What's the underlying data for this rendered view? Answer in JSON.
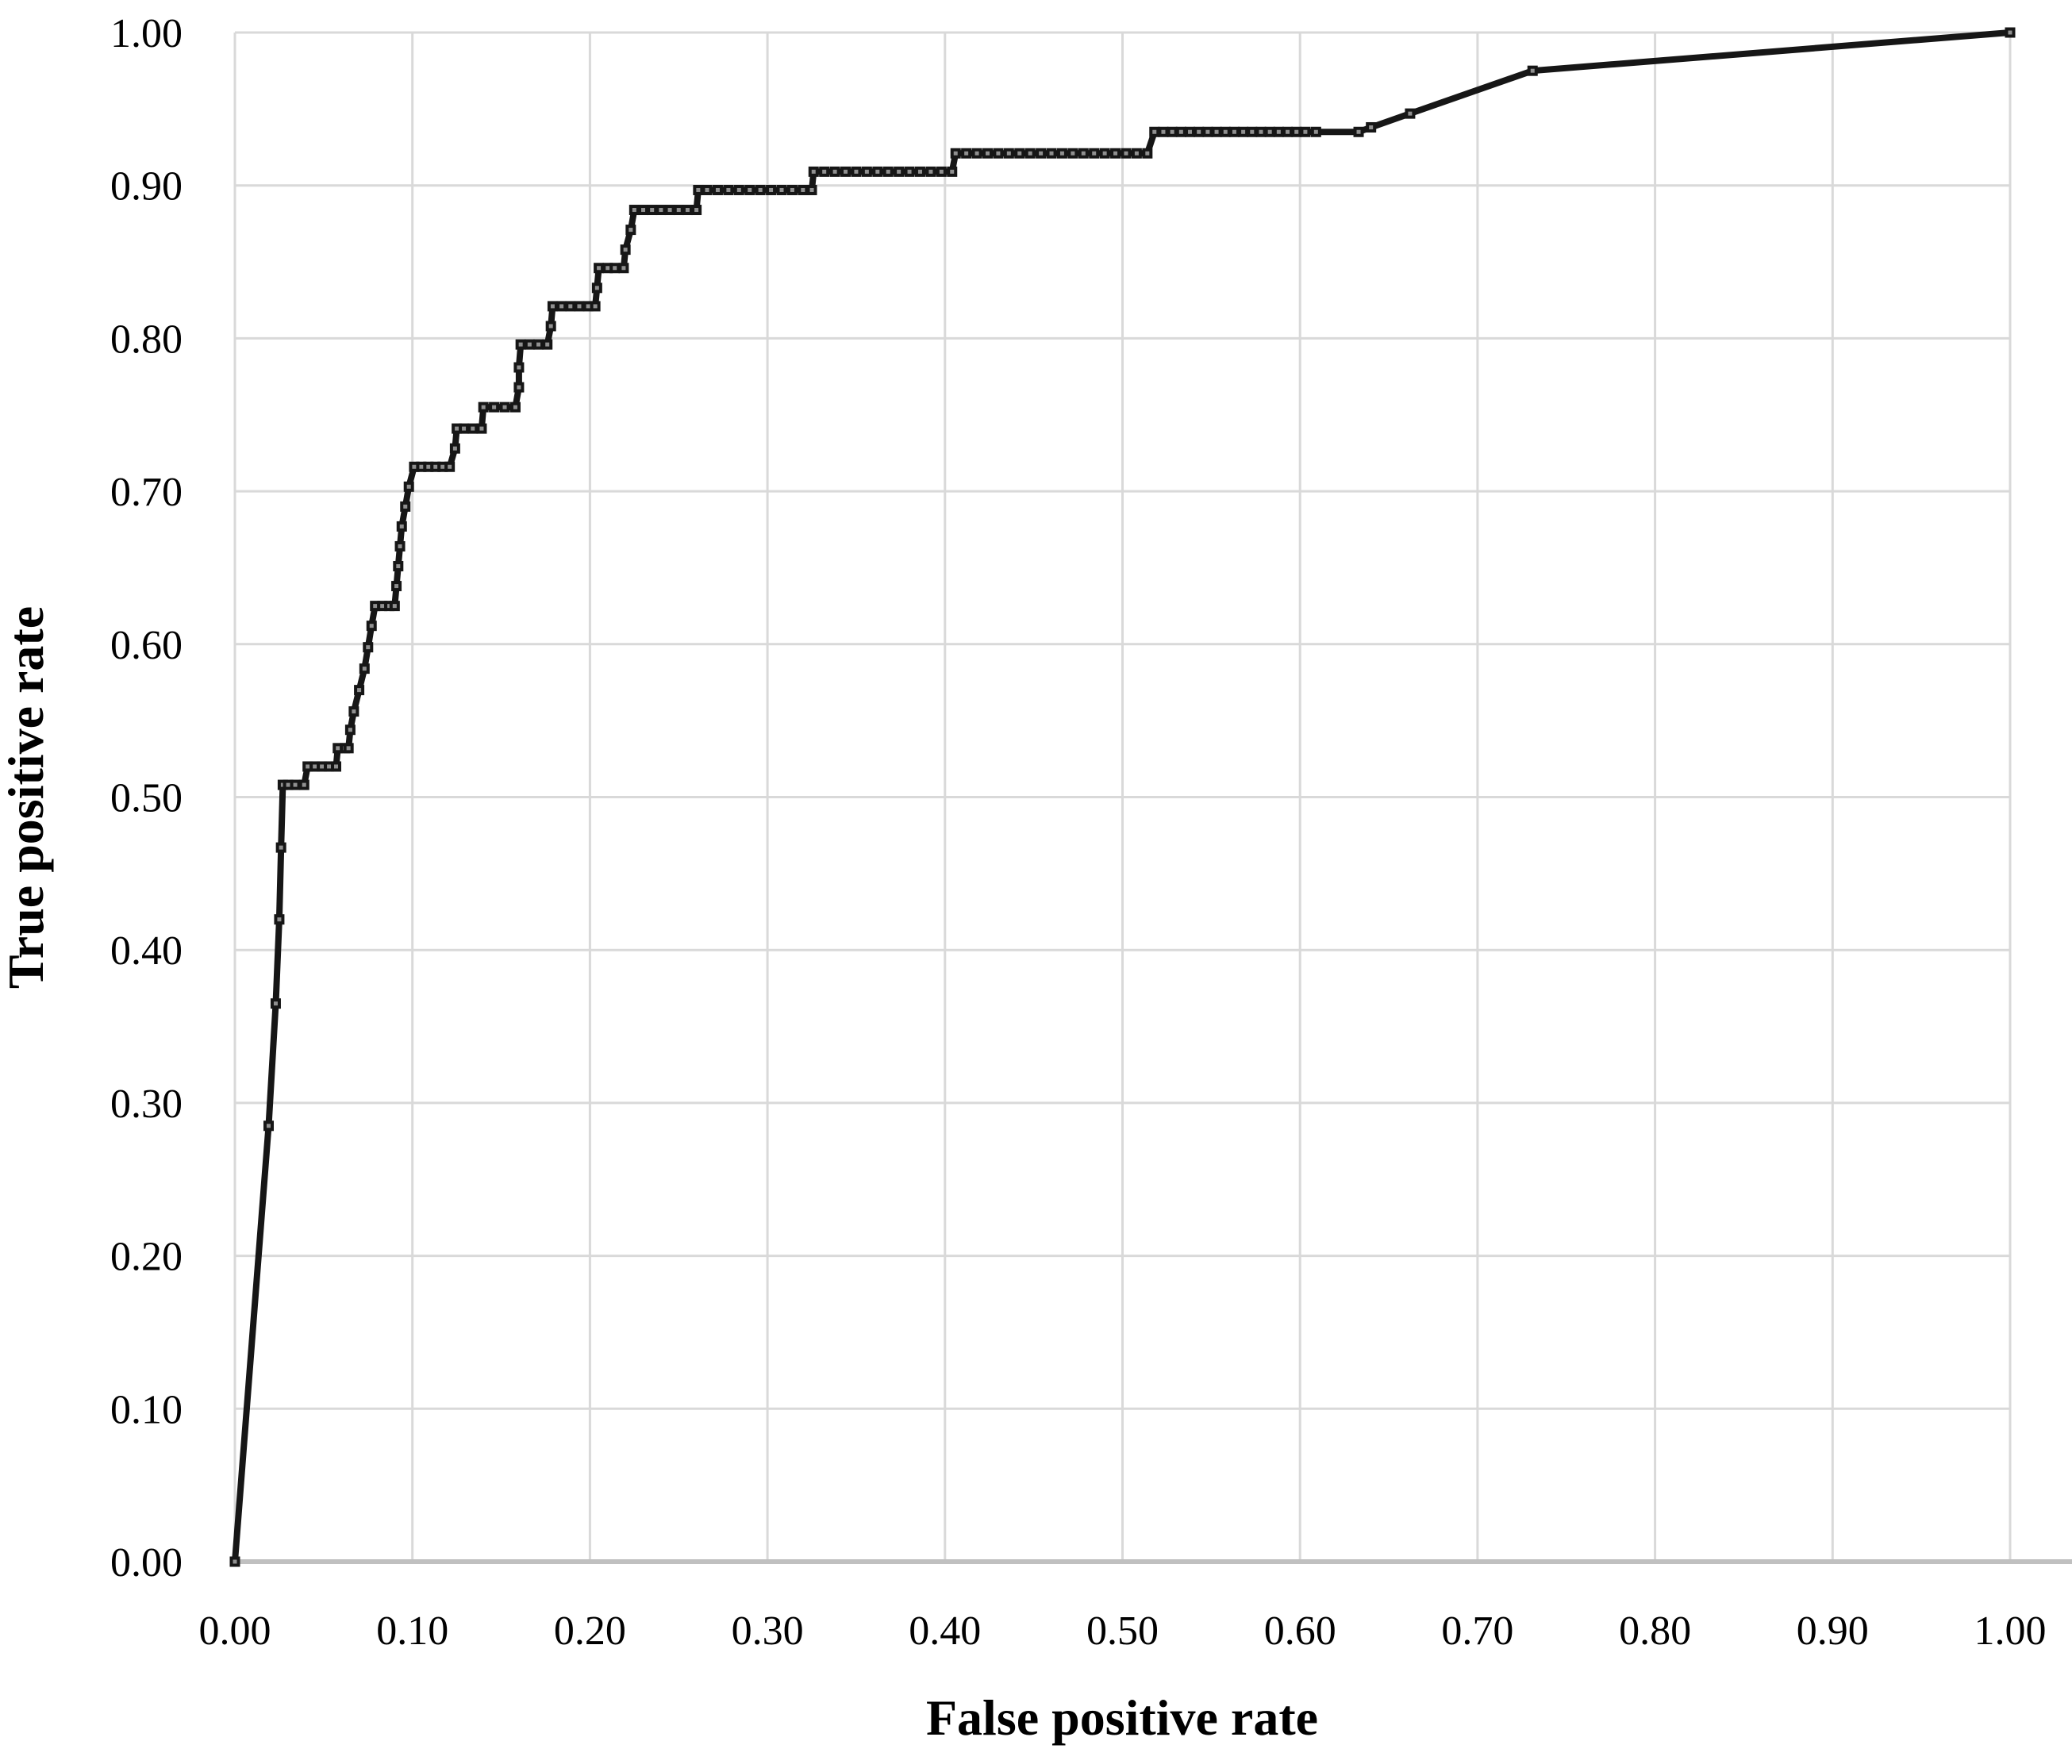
{
  "chart_data": {
    "type": "line",
    "subtype": "roc-step-curve",
    "title": "",
    "xlabel": "False positive rate",
    "ylabel": "True positive rate",
    "xlim": [
      0.0,
      1.0
    ],
    "ylim": [
      0.0,
      1.0
    ],
    "grid": true,
    "legend": false,
    "x_ticks": [
      "0.00",
      "0.10",
      "0.20",
      "0.30",
      "0.40",
      "0.50",
      "0.60",
      "0.70",
      "0.80",
      "0.90",
      "1.00"
    ],
    "y_ticks": [
      "0.00",
      "0.10",
      "0.20",
      "0.30",
      "0.40",
      "0.50",
      "0.60",
      "0.70",
      "0.80",
      "0.90",
      "1.00"
    ],
    "grid_color": "#d9d9d9",
    "axis_line_color": "#c0c0c0",
    "line_color": "#161616",
    "marker": "square",
    "marker_center_color": "#909090",
    "series": [
      {
        "name": "ROC curve",
        "points": [
          [
            0.0,
            0.0
          ],
          [
            0.019,
            0.285
          ],
          [
            0.023,
            0.365
          ],
          [
            0.025,
            0.42
          ],
          [
            0.026,
            0.467
          ],
          [
            0.027,
            0.508
          ],
          [
            0.03,
            0.508
          ],
          [
            0.034,
            0.508
          ],
          [
            0.039,
            0.508
          ],
          [
            0.041,
            0.52
          ],
          [
            0.045,
            0.52
          ],
          [
            0.049,
            0.52
          ],
          [
            0.053,
            0.52
          ],
          [
            0.057,
            0.52
          ],
          [
            0.058,
            0.532
          ],
          [
            0.062,
            0.532
          ],
          [
            0.064,
            0.532
          ],
          [
            0.065,
            0.544
          ],
          [
            0.067,
            0.556
          ],
          [
            0.07,
            0.57
          ],
          [
            0.073,
            0.584
          ],
          [
            0.075,
            0.598
          ],
          [
            0.077,
            0.612
          ],
          [
            0.079,
            0.625
          ],
          [
            0.083,
            0.625
          ],
          [
            0.087,
            0.625
          ],
          [
            0.09,
            0.625
          ],
          [
            0.091,
            0.638
          ],
          [
            0.092,
            0.651
          ],
          [
            0.093,
            0.664
          ],
          [
            0.094,
            0.677
          ],
          [
            0.096,
            0.69
          ],
          [
            0.098,
            0.703
          ],
          [
            0.101,
            0.716
          ],
          [
            0.105,
            0.716
          ],
          [
            0.109,
            0.716
          ],
          [
            0.113,
            0.716
          ],
          [
            0.117,
            0.716
          ],
          [
            0.121,
            0.716
          ],
          [
            0.124,
            0.728
          ],
          [
            0.125,
            0.741
          ],
          [
            0.129,
            0.741
          ],
          [
            0.134,
            0.741
          ],
          [
            0.139,
            0.741
          ],
          [
            0.14,
            0.755
          ],
          [
            0.146,
            0.755
          ],
          [
            0.152,
            0.755
          ],
          [
            0.158,
            0.755
          ],
          [
            0.16,
            0.768
          ],
          [
            0.16,
            0.781
          ],
          [
            0.161,
            0.796
          ],
          [
            0.166,
            0.796
          ],
          [
            0.171,
            0.796
          ],
          [
            0.176,
            0.796
          ],
          [
            0.178,
            0.808
          ],
          [
            0.179,
            0.821
          ],
          [
            0.184,
            0.821
          ],
          [
            0.189,
            0.821
          ],
          [
            0.194,
            0.821
          ],
          [
            0.199,
            0.821
          ],
          [
            0.203,
            0.821
          ],
          [
            0.204,
            0.833
          ],
          [
            0.205,
            0.846
          ],
          [
            0.21,
            0.846
          ],
          [
            0.214,
            0.846
          ],
          [
            0.219,
            0.846
          ],
          [
            0.22,
            0.858
          ],
          [
            0.223,
            0.871
          ],
          [
            0.225,
            0.884
          ],
          [
            0.23,
            0.884
          ],
          [
            0.235,
            0.884
          ],
          [
            0.24,
            0.884
          ],
          [
            0.245,
            0.884
          ],
          [
            0.25,
            0.884
          ],
          [
            0.255,
            0.884
          ],
          [
            0.26,
            0.884
          ],
          [
            0.261,
            0.897
          ],
          [
            0.266,
            0.897
          ],
          [
            0.272,
            0.897
          ],
          [
            0.278,
            0.897
          ],
          [
            0.284,
            0.897
          ],
          [
            0.29,
            0.897
          ],
          [
            0.296,
            0.897
          ],
          [
            0.302,
            0.897
          ],
          [
            0.308,
            0.897
          ],
          [
            0.314,
            0.897
          ],
          [
            0.32,
            0.897
          ],
          [
            0.325,
            0.897
          ],
          [
            0.326,
            0.909
          ],
          [
            0.332,
            0.909
          ],
          [
            0.338,
            0.909
          ],
          [
            0.344,
            0.909
          ],
          [
            0.35,
            0.909
          ],
          [
            0.356,
            0.909
          ],
          [
            0.362,
            0.909
          ],
          [
            0.368,
            0.909
          ],
          [
            0.374,
            0.909
          ],
          [
            0.38,
            0.909
          ],
          [
            0.386,
            0.909
          ],
          [
            0.392,
            0.909
          ],
          [
            0.398,
            0.909
          ],
          [
            0.404,
            0.909
          ],
          [
            0.406,
            0.921
          ],
          [
            0.412,
            0.921
          ],
          [
            0.418,
            0.921
          ],
          [
            0.424,
            0.921
          ],
          [
            0.43,
            0.921
          ],
          [
            0.436,
            0.921
          ],
          [
            0.442,
            0.921
          ],
          [
            0.448,
            0.921
          ],
          [
            0.454,
            0.921
          ],
          [
            0.46,
            0.921
          ],
          [
            0.466,
            0.921
          ],
          [
            0.472,
            0.921
          ],
          [
            0.478,
            0.921
          ],
          [
            0.484,
            0.921
          ],
          [
            0.49,
            0.921
          ],
          [
            0.496,
            0.921
          ],
          [
            0.502,
            0.921
          ],
          [
            0.508,
            0.921
          ],
          [
            0.514,
            0.921
          ],
          [
            0.518,
            0.935
          ],
          [
            0.523,
            0.935
          ],
          [
            0.528,
            0.935
          ],
          [
            0.533,
            0.935
          ],
          [
            0.538,
            0.935
          ],
          [
            0.543,
            0.935
          ],
          [
            0.548,
            0.935
          ],
          [
            0.553,
            0.935
          ],
          [
            0.558,
            0.935
          ],
          [
            0.563,
            0.935
          ],
          [
            0.568,
            0.935
          ],
          [
            0.573,
            0.935
          ],
          [
            0.578,
            0.935
          ],
          [
            0.583,
            0.935
          ],
          [
            0.588,
            0.935
          ],
          [
            0.593,
            0.935
          ],
          [
            0.598,
            0.935
          ],
          [
            0.603,
            0.935
          ],
          [
            0.609,
            0.935
          ],
          [
            0.633,
            0.935
          ],
          [
            0.64,
            0.938
          ],
          [
            0.662,
            0.947
          ],
          [
            0.731,
            0.975
          ],
          [
            1.0,
            1.0
          ]
        ]
      }
    ]
  }
}
